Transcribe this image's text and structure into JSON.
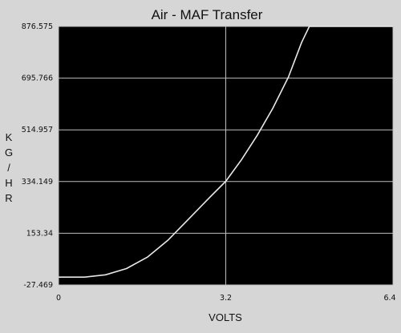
{
  "chart_data": {
    "type": "line",
    "title": "Air - MAF Transfer",
    "xlabel": "VOLTS",
    "ylabel_letters": [
      "K",
      "G",
      "/",
      "H",
      "R"
    ],
    "xlim": [
      0,
      6.4
    ],
    "ylim": [
      -27.469,
      876.575
    ],
    "x_ticks": [
      {
        "value": 0,
        "label": "0"
      },
      {
        "value": 3.2,
        "label": "3.2"
      },
      {
        "value": 6.4,
        "label": "6.4"
      }
    ],
    "y_ticks": [
      {
        "value": -27.469,
        "label": "-27.469"
      },
      {
        "value": 153.34,
        "label": "153.34"
      },
      {
        "value": 334.149,
        "label": "334.149"
      },
      {
        "value": 514.957,
        "label": "514.957"
      },
      {
        "value": 695.766,
        "label": "695.766"
      },
      {
        "value": 876.575,
        "label": "876.575"
      }
    ],
    "grid": true,
    "series": [
      {
        "x": [
          0,
          0.5,
          0.9,
          1.3,
          1.7,
          2.1,
          2.5,
          2.9,
          3.2,
          3.5,
          3.8,
          4.1,
          4.4,
          4.65,
          4.8,
          6.4
        ],
        "y": [
          0,
          0,
          8,
          30,
          70,
          130,
          205,
          280,
          335,
          410,
          495,
          590,
          700,
          820,
          876.575,
          876.575
        ]
      }
    ],
    "colors": {
      "background": "#d6d6d6",
      "plot_area": "#000000",
      "grid": "#bdbdbd",
      "line": "#e8e8e8"
    }
  }
}
